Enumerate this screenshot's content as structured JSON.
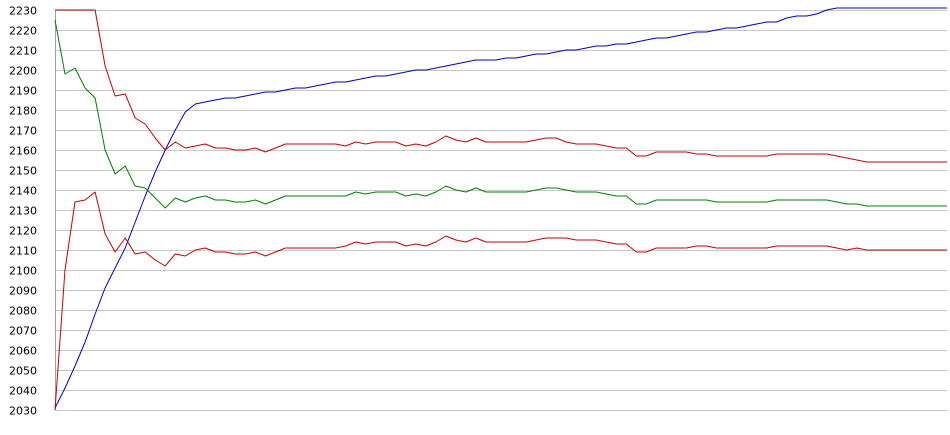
{
  "chart_data": {
    "type": "line",
    "title": "",
    "xlabel": "",
    "ylabel": "",
    "ylim": [
      2030,
      2230
    ],
    "yticks": [
      2030,
      2040,
      2050,
      2060,
      2070,
      2080,
      2090,
      2100,
      2110,
      2120,
      2130,
      2140,
      2150,
      2160,
      2170,
      2180,
      2190,
      2200,
      2210,
      2220,
      2230
    ],
    "grid": true,
    "legend": "none",
    "x": [
      0,
      1,
      2,
      3,
      4,
      5,
      6,
      7,
      8,
      9,
      10,
      11,
      12,
      13,
      14,
      15,
      16,
      17,
      18,
      19,
      20,
      21,
      22,
      23,
      24,
      25,
      26,
      27,
      28,
      29,
      30,
      31,
      32,
      33,
      34,
      35,
      36,
      37,
      38,
      39,
      40,
      41,
      42,
      43,
      44,
      45,
      46,
      47,
      48,
      49,
      50,
      51,
      52,
      53,
      54,
      55,
      56,
      57,
      58,
      59,
      60,
      61,
      62,
      63,
      64,
      65,
      66,
      67,
      68,
      69,
      70,
      71,
      72,
      73,
      74,
      75,
      76,
      77,
      78,
      79,
      80,
      81,
      82,
      83,
      84,
      85,
      86,
      87,
      88,
      89
    ],
    "series": [
      {
        "color": "#0000c8",
        "values": [
          2031,
          2041,
          2052,
          2064,
          2078,
          2091,
          2101,
          2111,
          2124,
          2137,
          2149,
          2160,
          2170,
          2179,
          2183,
          2184,
          2185,
          2186,
          2186,
          2187,
          2188,
          2189,
          2189,
          2190,
          2191,
          2191,
          2192,
          2193,
          2194,
          2194,
          2195,
          2196,
          2197,
          2197,
          2198,
          2199,
          2200,
          2200,
          2201,
          2202,
          2203,
          2204,
          2205,
          2205,
          2205,
          2206,
          2206,
          2207,
          2208,
          2208,
          2209,
          2210,
          2210,
          2211,
          2212,
          2212,
          2213,
          2213,
          2214,
          2215,
          2216,
          2216,
          2217,
          2218,
          2219,
          2219,
          2220,
          2221,
          2221,
          2222,
          2223,
          2224,
          2224,
          2226,
          2227,
          2227,
          2228,
          2230,
          2231,
          2231,
          2231,
          2231,
          2231,
          2231,
          2231,
          2231,
          2231,
          2231,
          2231,
          2231
        ]
      },
      {
        "color": "#c80000",
        "values": [
          2230,
          2230,
          2230,
          2230,
          2230,
          2202,
          2187,
          2188,
          2176,
          2173,
          2166,
          2160,
          2164,
          2161,
          2162,
          2163,
          2161,
          2161,
          2160,
          2160,
          2161,
          2159,
          2161,
          2163,
          2163,
          2163,
          2163,
          2163,
          2163,
          2162,
          2164,
          2163,
          2164,
          2164,
          2164,
          2162,
          2163,
          2162,
          2164,
          2167,
          2165,
          2164,
          2166,
          2164,
          2164,
          2164,
          2164,
          2164,
          2165,
          2166,
          2166,
          2164,
          2163,
          2163,
          2163,
          2162,
          2161,
          2161,
          2157,
          2157,
          2159,
          2159,
          2159,
          2159,
          2158,
          2158,
          2157,
          2157,
          2157,
          2157,
          2157,
          2157,
          2158,
          2158,
          2158,
          2158,
          2158,
          2158,
          2157,
          2156,
          2155,
          2154,
          2154,
          2154,
          2154,
          2154,
          2154,
          2154,
          2154,
          2154
        ]
      },
      {
        "color": "#008000",
        "values": [
          2225,
          2198,
          2201,
          2191,
          2186,
          2160,
          2148,
          2152,
          2142,
          2141,
          2136,
          2131,
          2136,
          2134,
          2136,
          2137,
          2135,
          2135,
          2134,
          2134,
          2135,
          2133,
          2135,
          2137,
          2137,
          2137,
          2137,
          2137,
          2137,
          2137,
          2139,
          2138,
          2139,
          2139,
          2139,
          2137,
          2138,
          2137,
          2139,
          2142,
          2140,
          2139,
          2141,
          2139,
          2139,
          2139,
          2139,
          2139,
          2140,
          2141,
          2141,
          2140,
          2139,
          2139,
          2139,
          2138,
          2137,
          2137,
          2133,
          2133,
          2135,
          2135,
          2135,
          2135,
          2135,
          2135,
          2134,
          2134,
          2134,
          2134,
          2134,
          2134,
          2135,
          2135,
          2135,
          2135,
          2135,
          2135,
          2134,
          2133,
          2133,
          2132,
          2132,
          2132,
          2132,
          2132,
          2132,
          2132,
          2132,
          2132
        ]
      },
      {
        "color": "#c80000",
        "values": [
          2030,
          2100,
          2134,
          2135,
          2139,
          2118,
          2109,
          2116,
          2108,
          2109,
          2105,
          2102,
          2108,
          2107,
          2110,
          2111,
          2109,
          2109,
          2108,
          2108,
          2109,
          2107,
          2109,
          2111,
          2111,
          2111,
          2111,
          2111,
          2111,
          2112,
          2114,
          2113,
          2114,
          2114,
          2114,
          2112,
          2113,
          2112,
          2114,
          2117,
          2115,
          2114,
          2116,
          2114,
          2114,
          2114,
          2114,
          2114,
          2115,
          2116,
          2116,
          2116,
          2115,
          2115,
          2115,
          2114,
          2113,
          2113,
          2109,
          2109,
          2111,
          2111,
          2111,
          2111,
          2112,
          2112,
          2111,
          2111,
          2111,
          2111,
          2111,
          2111,
          2112,
          2112,
          2112,
          2112,
          2112,
          2112,
          2111,
          2110,
          2111,
          2110,
          2110,
          2110,
          2110,
          2110,
          2110,
          2110,
          2110,
          2110
        ]
      }
    ]
  }
}
